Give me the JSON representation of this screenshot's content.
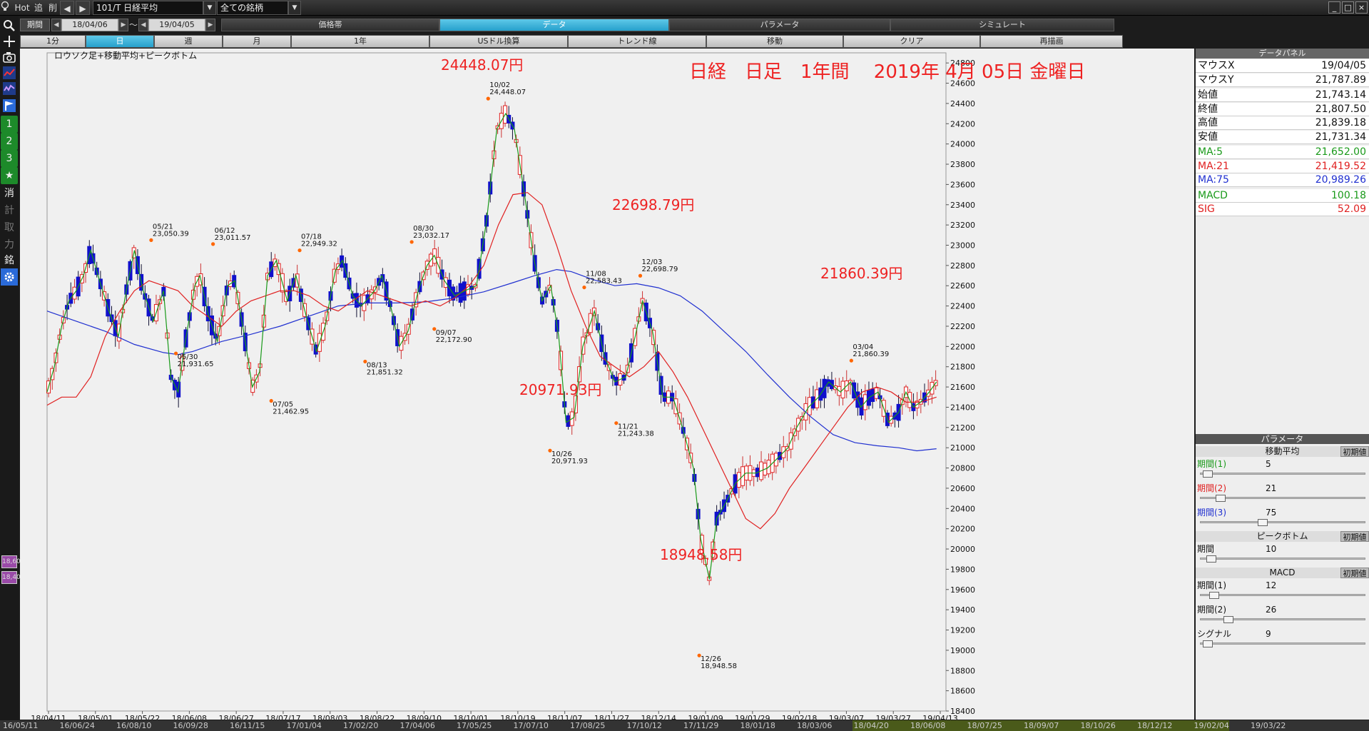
{
  "toolbar": {
    "hot": "Hot",
    "add": "追",
    "del": "削",
    "symbol": "101/T 日経平均",
    "universe": "全ての銘柄",
    "window_buttons": [
      "_",
      "□",
      "×"
    ]
  },
  "period": {
    "label": "期間",
    "from": "18/04/06",
    "tilde": "～",
    "to": "19/04/05"
  },
  "top_tabs": [
    "価格帯",
    "データ",
    "パラメータ",
    "シミュレート"
  ],
  "timeframes": [
    "1分",
    "日",
    "週",
    "月",
    "1年",
    "USドル換算",
    "トレンド線",
    "移動",
    "クリア",
    "再描画"
  ],
  "sidebar": {
    "items": [
      "search-icon",
      "crosshair-icon",
      "camera-icon",
      "line-chart-icon",
      "oscillator-icon",
      "flag-icon",
      "1",
      "2",
      "3",
      "★",
      "消",
      "計",
      "取",
      "力",
      "銘",
      "gear-icon"
    ],
    "bottom_labels": [
      "18,600",
      "18,400"
    ]
  },
  "chart": {
    "mode_label": "ロウソク足+移動平均+ピークボトム",
    "title": "日経　日足　1年間　 2019年 4月 05日 金曜日",
    "peak_labels": [
      "24448.07円",
      "22698.79円",
      "21860.39円",
      "20971.93円",
      "18948.58円"
    ]
  },
  "chart_data": {
    "type": "candlestick",
    "title": "日経　日足　1年間　 2019年 4月 05日 金曜日",
    "ylim": [
      18400,
      24900
    ],
    "y_ticks": [
      24800,
      24600,
      24400,
      24200,
      24000,
      23800,
      23600,
      23400,
      23200,
      23000,
      22800,
      22600,
      22400,
      22200,
      22000,
      21800,
      21600,
      21400,
      21200,
      21000,
      20800,
      20600,
      20400,
      20200,
      20000,
      19800,
      19600,
      19400,
      19200,
      19000,
      18800,
      18600,
      18400
    ],
    "x_ticks": [
      "18/04/11",
      "18/05/01",
      "18/05/22",
      "18/06/08",
      "18/06/27",
      "18/07/17",
      "18/08/03",
      "18/08/22",
      "18/09/10",
      "18/10/01",
      "18/10/19",
      "18/11/07",
      "18/11/27",
      "18/12/14",
      "19/01/09",
      "19/01/29",
      "19/02/18",
      "19/03/07",
      "19/03/27",
      "19/04/13"
    ],
    "series": [
      {
        "name": "MA:5",
        "color": "#1a9a1a"
      },
      {
        "name": "MA:21",
        "color": "#e02020"
      },
      {
        "name": "MA:75",
        "color": "#2030d0"
      }
    ],
    "ma5": [
      [
        0,
        21550
      ],
      [
        10,
        21800
      ],
      [
        20,
        22200
      ],
      [
        30,
        22450
      ],
      [
        40,
        22550
      ],
      [
        50,
        22700
      ],
      [
        60,
        22950
      ],
      [
        72,
        22650
      ],
      [
        85,
        22350
      ],
      [
        98,
        22100
      ],
      [
        110,
        22600
      ],
      [
        120,
        22950
      ],
      [
        132,
        22550
      ],
      [
        146,
        22250
      ],
      [
        160,
        22550
      ],
      [
        170,
        21700
      ],
      [
        180,
        21550
      ],
      [
        190,
        22050
      ],
      [
        203,
        22600
      ],
      [
        210,
        22700
      ],
      [
        222,
        22300
      ],
      [
        234,
        22050
      ],
      [
        248,
        22600
      ],
      [
        258,
        22650
      ],
      [
        270,
        22150
      ],
      [
        282,
        21600
      ],
      [
        292,
        21750
      ],
      [
        303,
        22700
      ],
      [
        315,
        22850
      ],
      [
        330,
        22450
      ],
      [
        342,
        22700
      ],
      [
        356,
        22300
      ],
      [
        370,
        21950
      ],
      [
        382,
        22200
      ],
      [
        396,
        22750
      ],
      [
        406,
        22850
      ],
      [
        420,
        22500
      ],
      [
        432,
        22400
      ],
      [
        450,
        22550
      ],
      [
        460,
        22700
      ],
      [
        472,
        22400
      ],
      [
        484,
        22000
      ],
      [
        496,
        22150
      ],
      [
        510,
        22550
      ],
      [
        522,
        22800
      ],
      [
        532,
        22900
      ],
      [
        546,
        22650
      ],
      [
        560,
        22500
      ],
      [
        574,
        22550
      ],
      [
        590,
        22600
      ],
      [
        604,
        23250
      ],
      [
        618,
        24150
      ],
      [
        630,
        24300
      ],
      [
        642,
        24150
      ],
      [
        656,
        23500
      ],
      [
        668,
        22900
      ],
      [
        680,
        22450
      ],
      [
        692,
        22600
      ],
      [
        703,
        22100
      ],
      [
        713,
        21250
      ],
      [
        724,
        21300
      ],
      [
        736,
        22000
      ],
      [
        752,
        22350
      ],
      [
        766,
        21900
      ],
      [
        780,
        21650
      ],
      [
        795,
        21700
      ],
      [
        808,
        22100
      ],
      [
        818,
        22450
      ],
      [
        832,
        22150
      ],
      [
        846,
        21500
      ],
      [
        860,
        21500
      ],
      [
        875,
        21150
      ],
      [
        888,
        20800
      ],
      [
        898,
        20100
      ],
      [
        910,
        19700
      ],
      [
        920,
        20300
      ],
      [
        932,
        20450
      ],
      [
        946,
        20650
      ],
      [
        960,
        20750
      ],
      [
        974,
        20750
      ],
      [
        990,
        20800
      ],
      [
        1004,
        20900
      ],
      [
        1018,
        21000
      ],
      [
        1030,
        21200
      ],
      [
        1046,
        21400
      ],
      [
        1060,
        21500
      ],
      [
        1074,
        21650
      ],
      [
        1090,
        21550
      ],
      [
        1104,
        21650
      ],
      [
        1118,
        21400
      ],
      [
        1130,
        21500
      ],
      [
        1142,
        21550
      ],
      [
        1156,
        21250
      ],
      [
        1170,
        21350
      ],
      [
        1180,
        21550
      ],
      [
        1190,
        21400
      ],
      [
        1200,
        21450
      ],
      [
        1212,
        21550
      ],
      [
        1222,
        21650
      ]
    ],
    "ma21": [
      [
        0,
        21420
      ],
      [
        20,
        21500
      ],
      [
        40,
        21500
      ],
      [
        60,
        21700
      ],
      [
        80,
        22100
      ],
      [
        100,
        22350
      ],
      [
        120,
        22550
      ],
      [
        140,
        22650
      ],
      [
        160,
        22600
      ],
      [
        180,
        22550
      ],
      [
        200,
        22400
      ],
      [
        220,
        22300
      ],
      [
        240,
        22200
      ],
      [
        260,
        22350
      ],
      [
        280,
        22450
      ],
      [
        300,
        22500
      ],
      [
        320,
        22550
      ],
      [
        340,
        22550
      ],
      [
        360,
        22500
      ],
      [
        380,
        22400
      ],
      [
        400,
        22350
      ],
      [
        420,
        22450
      ],
      [
        440,
        22550
      ],
      [
        460,
        22500
      ],
      [
        480,
        22450
      ],
      [
        500,
        22400
      ],
      [
        520,
        22450
      ],
      [
        540,
        22400
      ],
      [
        560,
        22480
      ],
      [
        580,
        22600
      ],
      [
        600,
        22800
      ],
      [
        620,
        23200
      ],
      [
        640,
        23500
      ],
      [
        660,
        23520
      ],
      [
        680,
        23400
      ],
      [
        700,
        23000
      ],
      [
        720,
        22550
      ],
      [
        740,
        22200
      ],
      [
        760,
        21900
      ],
      [
        780,
        21800
      ],
      [
        800,
        21700
      ],
      [
        820,
        21800
      ],
      [
        840,
        21950
      ],
      [
        860,
        21750
      ],
      [
        880,
        21500
      ],
      [
        900,
        21200
      ],
      [
        920,
        20900
      ],
      [
        940,
        20600
      ],
      [
        960,
        20300
      ],
      [
        980,
        20200
      ],
      [
        1000,
        20350
      ],
      [
        1020,
        20600
      ],
      [
        1040,
        20800
      ],
      [
        1060,
        21000
      ],
      [
        1080,
        21200
      ],
      [
        1100,
        21400
      ],
      [
        1120,
        21550
      ],
      [
        1140,
        21600
      ],
      [
        1160,
        21550
      ],
      [
        1180,
        21450
      ],
      [
        1200,
        21450
      ],
      [
        1222,
        21500
      ]
    ],
    "ma75": [
      [
        0,
        22350
      ],
      [
        40,
        22250
      ],
      [
        80,
        22150
      ],
      [
        120,
        22020
      ],
      [
        160,
        21940
      ],
      [
        180,
        21920
      ],
      [
        200,
        21950
      ],
      [
        240,
        22050
      ],
      [
        280,
        22120
      ],
      [
        320,
        22200
      ],
      [
        360,
        22300
      ],
      [
        400,
        22400
      ],
      [
        440,
        22430
      ],
      [
        480,
        22430
      ],
      [
        520,
        22440
      ],
      [
        560,
        22480
      ],
      [
        600,
        22540
      ],
      [
        640,
        22630
      ],
      [
        670,
        22700
      ],
      [
        700,
        22760
      ],
      [
        720,
        22740
      ],
      [
        750,
        22660
      ],
      [
        780,
        22600
      ],
      [
        810,
        22620
      ],
      [
        840,
        22580
      ],
      [
        870,
        22500
      ],
      [
        900,
        22350
      ],
      [
        930,
        22150
      ],
      [
        960,
        21950
      ],
      [
        990,
        21720
      ],
      [
        1020,
        21500
      ],
      [
        1050,
        21300
      ],
      [
        1080,
        21130
      ],
      [
        1110,
        21050
      ],
      [
        1140,
        21020
      ],
      [
        1170,
        21000
      ],
      [
        1195,
        20970
      ],
      [
        1222,
        20990
      ]
    ],
    "peaks": [
      {
        "x": 143,
        "v": 23050.39,
        "date": "05/21",
        "value": "23,050.39",
        "kind": "peak"
      },
      {
        "x": 177,
        "v": 21931.65,
        "date": "05/30",
        "value": "21,931.65",
        "kind": "bottom"
      },
      {
        "x": 228,
        "v": 23011.57,
        "date": "06/12",
        "value": "23,011.57",
        "kind": "peak"
      },
      {
        "x": 308,
        "v": 21462.95,
        "date": "07/05",
        "value": "21,462.95",
        "kind": "bottom"
      },
      {
        "x": 347,
        "v": 22949.32,
        "date": "07/18",
        "value": "22,949.32",
        "kind": "peak"
      },
      {
        "x": 437,
        "v": 21851.32,
        "date": "08/13",
        "value": "21,851.32",
        "kind": "bottom"
      },
      {
        "x": 501,
        "v": 23032.17,
        "date": "08/30",
        "value": "23,032.17",
        "kind": "peak"
      },
      {
        "x": 532,
        "v": 22172.9,
        "date": "09/07",
        "value": "22,172.90",
        "kind": "bottom"
      },
      {
        "x": 606,
        "v": 24448.07,
        "date": "10/02",
        "value": "24,448.07",
        "kind": "peak"
      },
      {
        "x": 691,
        "v": 20971.93,
        "date": "10/26",
        "value": "20,971.93",
        "kind": "bottom"
      },
      {
        "x": 738,
        "v": 22583.43,
        "date": "11/08",
        "value": "22,583.43",
        "kind": "peak"
      },
      {
        "x": 782,
        "v": 21243.38,
        "date": "11/21",
        "value": "21,243.38",
        "kind": "bottom"
      },
      {
        "x": 815,
        "v": 22698.79,
        "date": "12/03",
        "value": "22,698.79",
        "kind": "peak"
      },
      {
        "x": 896,
        "v": 18948.58,
        "date": "12/26",
        "value": "18,948.58",
        "kind": "bottom"
      },
      {
        "x": 1105,
        "v": 21860.39,
        "date": "03/04",
        "value": "21,860.39",
        "kind": "peak"
      }
    ]
  },
  "data_panel": {
    "title": "データパネル",
    "rows": [
      {
        "label": "マウスX",
        "value": "19/04/05",
        "color": "#111"
      },
      {
        "label": "マウスY",
        "value": "21,787.89",
        "color": "#111"
      },
      {
        "label": "始値",
        "value": "21,743.14",
        "color": "#111"
      },
      {
        "label": "終値",
        "value": "21,807.50",
        "color": "#111"
      },
      {
        "label": "高値",
        "value": "21,839.18",
        "color": "#111"
      },
      {
        "label": "安値",
        "value": "21,731.34",
        "color": "#111"
      },
      {
        "label": "MA:5",
        "value": "21,652.00",
        "color": "#1a9a1a"
      },
      {
        "label": "MA:21",
        "value": "21,419.52",
        "color": "#e02020"
      },
      {
        "label": "MA:75",
        "value": "20,989.26",
        "color": "#2030d0"
      },
      {
        "label": "MACD",
        "value": "100.18",
        "color": "#1a9a1a"
      },
      {
        "label": "SIG",
        "value": "52.09",
        "color": "#e02020"
      }
    ]
  },
  "param_panel": {
    "title": "パラメータ",
    "reset": "初期値",
    "ma_title": "移動平均",
    "ma_rows": [
      {
        "label": "期間(1)",
        "value": "5",
        "color": "#1a9a1a",
        "fill": 0.02
      },
      {
        "label": "期間(2)",
        "value": "21",
        "color": "#e02020",
        "fill": 0.1
      },
      {
        "label": "期間(3)",
        "value": "75",
        "color": "#2030d0",
        "fill": 0.37
      }
    ],
    "pb_title": "ピークボトム",
    "pb_rows": [
      {
        "label": "期間",
        "value": "10",
        "color": "#111",
        "fill": 0.04
      }
    ],
    "macd_title": "MACD",
    "macd_rows": [
      {
        "label": "期間(1)",
        "value": "12",
        "color": "#111",
        "fill": 0.06
      },
      {
        "label": "期間(2)",
        "value": "26",
        "color": "#111",
        "fill": 0.15
      },
      {
        "label": "シグナル",
        "value": "9",
        "color": "#111",
        "fill": 0.02
      }
    ]
  },
  "bottom_dates": [
    "16/05/11",
    "16/06/24",
    "16/08/10",
    "16/09/28",
    "16/11/15",
    "17/01/04",
    "17/02/20",
    "17/04/06",
    "17/05/25",
    "17/07/10",
    "17/08/25",
    "17/10/12",
    "17/11/29",
    "18/01/18",
    "18/03/06",
    "18/04/20",
    "18/06/08",
    "18/07/25",
    "18/09/07",
    "18/10/26",
    "18/12/12",
    "19/02/04",
    "19/03/22"
  ]
}
